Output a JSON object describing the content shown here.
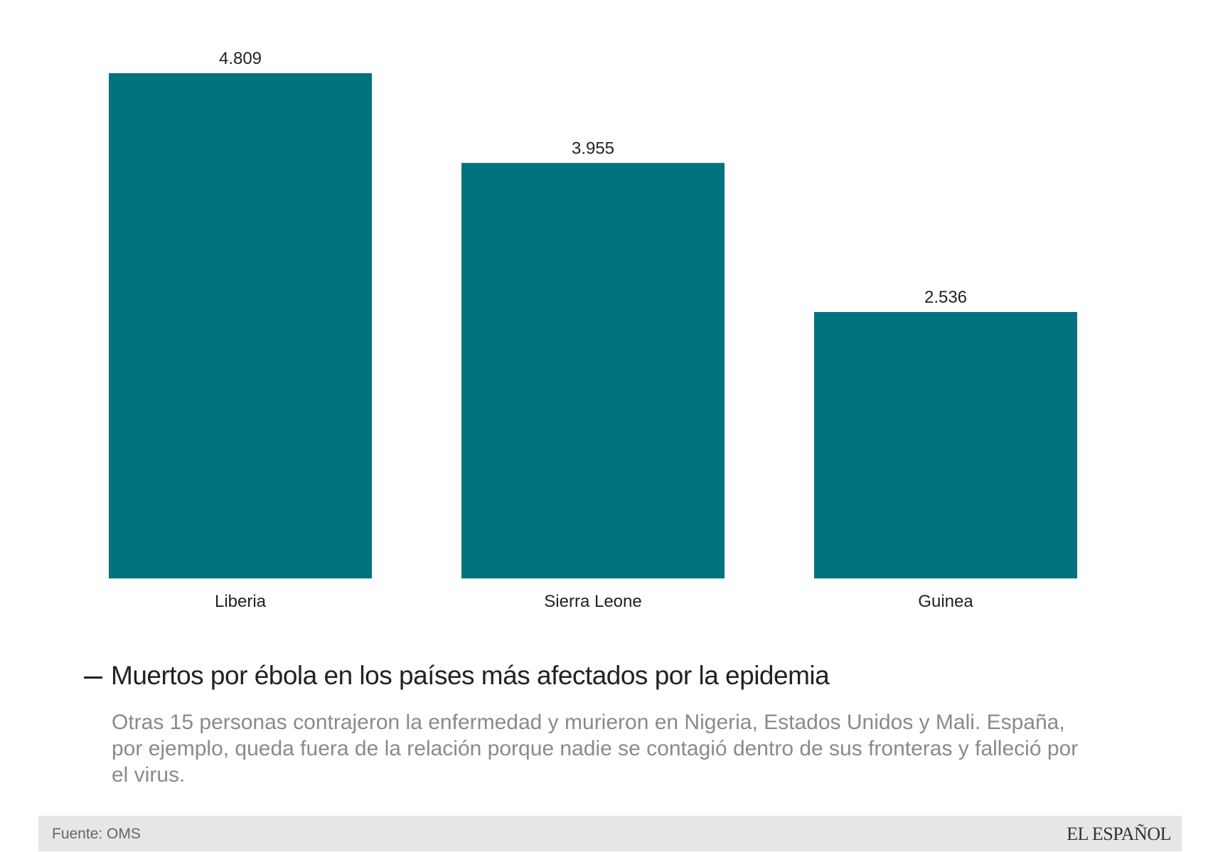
{
  "chart_data": {
    "type": "bar",
    "title": "Muertos por ébola en los países más afectados por la epidemia",
    "subtitle": "Otras 15 personas contrajeron la enfermedad y murieron en Nigeria, Estados Unidos y Mali. España, por ejemplo, queda fuera de la relación porque nadie se contagió dentro de sus fronteras y falleció por el virus.",
    "source": "Fuente: OMS",
    "brand": "EL ESPAÑOL",
    "categories": [
      "Liberia",
      "Sierra Leone",
      "Guinea"
    ],
    "values": [
      4809,
      3955,
      2536
    ],
    "value_labels": [
      "4.809",
      "3.955",
      "2.536"
    ],
    "color": "#01737e"
  }
}
